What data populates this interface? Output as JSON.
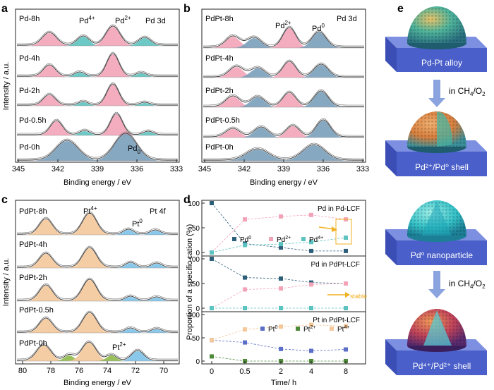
{
  "panels": {
    "a": {
      "letter": "a",
      "corner_label": "Pd 3d",
      "peak_labels": [
        "Pd",
        "4+",
        "Pd",
        "2+"
      ],
      "pd0_label": [
        "Pd",
        "0"
      ],
      "traces": [
        "Pd-8h",
        "Pd-4h",
        "Pd-2h",
        "Pd-0.5h",
        "Pd-0h"
      ],
      "xticks": [
        "345",
        "342",
        "339",
        "336",
        "333"
      ],
      "xlabel": "Binding energy / eV",
      "ylabel": "Intensity / a.u."
    },
    "b": {
      "letter": "b",
      "corner_label": "Pd 3d",
      "peak_labels": [
        "Pd",
        "2+",
        "Pd",
        "0"
      ],
      "traces": [
        "PdPt-8h",
        "PdPt-4h",
        "PdPt-2h",
        "PdPt-0.5h",
        "PdPt-0h"
      ],
      "xticks": [
        "345",
        "342",
        "339",
        "336",
        "333"
      ],
      "xlabel": "Binding energy / eV"
    },
    "c": {
      "letter": "c",
      "corner_label": "Pt 4f",
      "peak_labels": [
        "Pt",
        "4+",
        "Pt",
        "0"
      ],
      "pt2_label": [
        "Pt",
        "2+"
      ],
      "traces": [
        "PdPt-8h",
        "PdPt-4h",
        "PdPt-2h",
        "PdPt-0.5h",
        "PdPt-0h"
      ],
      "xticks": [
        "80",
        "78",
        "76",
        "74",
        "72",
        "70"
      ],
      "xlabel": "Binding energy / eV",
      "ylabel": "Intensity / a.u."
    },
    "d": {
      "letter": "d",
      "ylabel": "Proportion of a specific cation (%)",
      "xlabel": "Time/ h",
      "xticks": [
        "0",
        "0.5",
        "2",
        "4",
        "8"
      ],
      "sub_titles": [
        "Pd in Pd-LCF",
        "Pd in PdPt-LCF",
        "Pt in PdPt-LCF"
      ],
      "legend_pd": [
        [
          "Pd",
          "0"
        ],
        [
          "Pd",
          "2+"
        ],
        [
          "Pd",
          "4+"
        ]
      ],
      "legend_pt": [
        [
          "Pt",
          "0"
        ],
        [
          "Pt",
          "2+"
        ],
        [
          "Pt",
          "4+"
        ]
      ],
      "stable_label": "stable"
    },
    "e": {
      "letter": "e",
      "labels": [
        "Pd-Pt alloy",
        "Pd²⁺/Pd⁰ shell",
        "Pd⁰ nanoparticle",
        "Pd⁴⁺/Pd²⁺ shell"
      ],
      "arrow_label": [
        "in CH",
        "4",
        "/O",
        "2"
      ]
    }
  },
  "colors": {
    "pink": "#f3a3b8",
    "teal": "#5cc3c0",
    "steel": "#7a9fba",
    "orange": "#f4c89a",
    "blue": "#7cc2e8",
    "green": "#8fb94d",
    "navy": "#2e5f7a",
    "block": "#4a5fc9"
  },
  "chart_data": [
    {
      "type": "line",
      "title": "Pd in Pd-LCF",
      "x": [
        "0",
        "0.5",
        "2",
        "4",
        "8"
      ],
      "series": [
        {
          "name": "Pd0",
          "values": [
            100,
            18,
            10,
            3,
            3
          ]
        },
        {
          "name": "Pd2+",
          "values": [
            0,
            67,
            73,
            76,
            67
          ]
        },
        {
          "name": "Pd4+",
          "values": [
            0,
            15,
            17,
            21,
            30
          ]
        }
      ]
    },
    {
      "type": "line",
      "title": "Pd in PdPt-LCF",
      "x": [
        "0",
        "0.5",
        "2",
        "4",
        "8"
      ],
      "series": [
        {
          "name": "Pd0",
          "values": [
            100,
            62,
            60,
            52,
            50
          ]
        },
        {
          "name": "Pd2+",
          "values": [
            0,
            38,
            40,
            48,
            50
          ]
        },
        {
          "name": "Pd4+",
          "values": [
            0,
            0,
            0,
            0,
            0
          ]
        }
      ]
    },
    {
      "type": "line",
      "title": "Pt in PdPt-LCF",
      "x": [
        "0",
        "0.5",
        "2",
        "4",
        "8"
      ],
      "series": [
        {
          "name": "Pt0",
          "values": [
            45,
            40,
            26,
            22,
            25
          ]
        },
        {
          "name": "Pt2+",
          "values": [
            10,
            0,
            0,
            0,
            0
          ]
        },
        {
          "name": "Pt4+",
          "values": [
            45,
            68,
            74,
            78,
            75
          ]
        }
      ]
    }
  ]
}
